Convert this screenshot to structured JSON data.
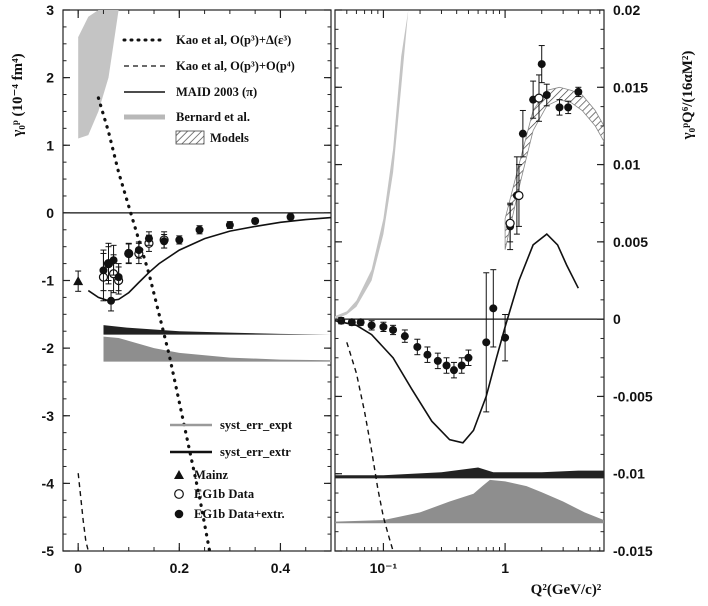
{
  "chart_data": [
    {
      "type": "line",
      "panel": "left",
      "ylabel": "γ₀ᵖ (10⁻⁴ fm⁴)",
      "xlabel": "",
      "xlim": [
        -0.03,
        0.5
      ],
      "ylim": [
        -5,
        3
      ],
      "x_ticks": [
        0,
        0.2,
        0.4
      ],
      "x_tick_labels": [
        "0",
        "0.2",
        "0.4"
      ],
      "y_ticks": [
        -5,
        -4,
        -3,
        -2,
        -1,
        0,
        1,
        2,
        3
      ],
      "y_tick_labels": [
        "-5",
        "-4",
        "-3",
        "-2",
        "-1",
        "0",
        "1",
        "2",
        "3"
      ],
      "legend_placement": "top-right and bottom-right",
      "legend": [
        {
          "label": "Kao et al, O(p³)+Δ(ε³)",
          "style": "dotted"
        },
        {
          "label": "Kao et al, O(p³)+O(p⁴)",
          "style": "dashed"
        },
        {
          "label": "MAID 2003 (π)",
          "style": "solid"
        },
        {
          "label": "Bernard et al.",
          "style": "gray-band"
        },
        {
          "label": "Models",
          "style": "hatched"
        },
        {
          "label": "syst_err_expt",
          "style": "gray-thick"
        },
        {
          "label": "syst_err_extr",
          "style": "black-thick"
        },
        {
          "label": "Mainz",
          "style": "triangle"
        },
        {
          "label": "EG1b Data",
          "style": "open-circle"
        },
        {
          "label": "EG1b Data+extr.",
          "style": "filled-circle"
        }
      ],
      "series": [
        {
          "name": "Kao et al, O(p³)+Δ(ε³)",
          "style": "dotted",
          "x": [
            0.04,
            0.06,
            0.08,
            0.1,
            0.12,
            0.14,
            0.16,
            0.18,
            0.2,
            0.22,
            0.24,
            0.26
          ],
          "y": [
            1.7,
            1.2,
            0.6,
            0.1,
            -0.4,
            -0.9,
            -1.5,
            -2.1,
            -2.8,
            -3.5,
            -4.2,
            -5.0
          ]
        },
        {
          "name": "Kao et al, O(p³)+O(p⁴)",
          "style": "dashed",
          "x": [
            0.0,
            0.005,
            0.01,
            0.015,
            0.02
          ],
          "y": [
            -3.85,
            -4.2,
            -4.55,
            -4.85,
            -5.0
          ]
        },
        {
          "name": "MAID 2003 (π)",
          "style": "solid",
          "x": [
            0.02,
            0.04,
            0.06,
            0.08,
            0.1,
            0.12,
            0.14,
            0.16,
            0.2,
            0.25,
            0.3,
            0.35,
            0.4,
            0.45,
            0.5
          ],
          "y": [
            -1.15,
            -1.25,
            -1.3,
            -1.28,
            -1.18,
            -1.03,
            -0.88,
            -0.75,
            -0.55,
            -0.38,
            -0.27,
            -0.2,
            -0.14,
            -0.1,
            -0.07
          ]
        },
        {
          "name": "Mainz",
          "style": "triangle",
          "x": [
            0.0
          ],
          "y": [
            -1.01
          ],
          "err": [
            0.15
          ]
        },
        {
          "name": "EG1b Data",
          "style": "open-circle",
          "x": [
            0.05,
            0.06,
            0.07,
            0.08,
            0.1,
            0.12,
            0.14,
            0.17
          ],
          "y": [
            -0.95,
            -0.75,
            -0.9,
            -1.0,
            -0.6,
            -0.6,
            -0.45,
            -0.4
          ],
          "err": [
            0.35,
            0.3,
            0.28,
            0.2,
            0.15,
            0.15,
            0.12,
            0.12
          ]
        },
        {
          "name": "EG1b Data+extr.",
          "style": "filled-circle",
          "x": [
            0.05,
            0.06,
            0.065,
            0.07,
            0.08,
            0.1,
            0.12,
            0.14,
            0.17,
            0.2,
            0.24,
            0.3,
            0.35,
            0.42
          ],
          "y": [
            -0.85,
            -0.75,
            -1.3,
            -0.7,
            -0.95,
            -0.6,
            -0.55,
            -0.38,
            -0.42,
            -0.4,
            -0.25,
            -0.18,
            -0.12,
            -0.06
          ],
          "err": [
            0.3,
            0.25,
            0.15,
            0.22,
            0.2,
            0.14,
            0.12,
            0.1,
            0.1,
            0.06,
            0.06,
            0.05,
            0.04,
            0.04
          ]
        }
      ],
      "bands": [
        {
          "name": "Bernard et al.",
          "x": [
            0.0,
            0.02,
            0.04,
            0.06,
            0.07,
            0.08
          ],
          "y_low": [
            1.1,
            1.15,
            1.5,
            2.0,
            2.5,
            3.0
          ],
          "y_high": [
            2.6,
            2.9,
            3.0,
            3.0,
            3.0,
            3.0
          ]
        },
        {
          "name": "syst_err_expt",
          "x": [
            0.05,
            0.08,
            0.15,
            0.2,
            0.3,
            0.4,
            0.5
          ],
          "y_top": [
            -1.83,
            -1.85,
            -2.0,
            -2.07,
            -2.14,
            -2.17,
            -2.18
          ],
          "y_base": -2.2
        },
        {
          "name": "syst_err_extr",
          "x": [
            0.05,
            0.1,
            0.2,
            0.3,
            0.4,
            0.5
          ],
          "y_top": [
            -1.66,
            -1.7,
            -1.75,
            -1.77,
            -1.79,
            -1.8
          ],
          "y_base": -1.8
        }
      ]
    },
    {
      "type": "line",
      "panel": "right",
      "ylabel": "γ₀ᵖQ⁶/(16αM²)",
      "xlabel": "Q²(GeV/c)²",
      "x_scale": "log",
      "xlim": [
        0.04,
        6.5
      ],
      "ylim": [
        -0.015,
        0.02
      ],
      "x_ticks": [
        0.1,
        1
      ],
      "x_tick_labels": [
        "10⁻¹",
        "1"
      ],
      "y_ticks": [
        -0.015,
        -0.01,
        -0.005,
        0,
        0.005,
        0.01,
        0.015,
        0.02
      ],
      "y_tick_labels": [
        "-0.015",
        "-0.01",
        "-0.005",
        "0",
        "0.005",
        "0.01",
        "0.015",
        "0.02"
      ],
      "series": [
        {
          "name": "Kao et al, O(p³)+O(p⁴)",
          "style": "dashed",
          "x": [
            0.05,
            0.06,
            0.07,
            0.08,
            0.09,
            0.1,
            0.11,
            0.12
          ],
          "y": [
            -0.0015,
            -0.0035,
            -0.006,
            -0.0085,
            -0.011,
            -0.0128,
            -0.014,
            -0.015
          ]
        },
        {
          "name": "MAID 2003 (π)",
          "style": "solid",
          "x": [
            0.04,
            0.06,
            0.08,
            0.12,
            0.17,
            0.25,
            0.35,
            0.45,
            0.55,
            0.7,
            0.85,
            1.0,
            1.3,
            1.7,
            2.2,
            2.7,
            3.2,
            4.0
          ],
          "y": [
            -0.0001,
            -0.0004,
            -0.001,
            -0.0025,
            -0.0045,
            -0.0066,
            -0.0078,
            -0.008,
            -0.0072,
            -0.005,
            -0.0025,
            -0.0005,
            0.0025,
            0.0048,
            0.0055,
            0.0048,
            0.0035,
            0.002
          ]
        },
        {
          "name": "EG1b Data+extr.",
          "style": "filled-circle",
          "x": [
            0.045,
            0.055,
            0.065,
            0.08,
            0.1,
            0.12,
            0.15,
            0.19,
            0.23,
            0.28,
            0.33,
            0.38,
            0.44,
            0.5,
            0.7,
            0.8,
            1.0,
            1.1,
            1.25,
            1.4,
            1.7,
            2.0,
            2.2,
            2.8,
            3.3,
            4.0
          ],
          "y": [
            -0.0001,
            -0.0002,
            -0.0002,
            -0.0004,
            -0.0005,
            -0.0007,
            -0.0011,
            -0.0018,
            -0.0023,
            -0.0027,
            -0.003,
            -0.0033,
            -0.003,
            -0.0025,
            -0.0015,
            0.0007,
            -0.0012,
            0.006,
            0.008,
            0.012,
            0.0142,
            0.0165,
            0.0145,
            0.0137,
            0.0137,
            0.0147
          ],
          "err": [
            0.0002,
            0.0002,
            0.0002,
            0.0003,
            0.0003,
            0.0003,
            0.0004,
            0.0005,
            0.0005,
            0.0005,
            0.0005,
            0.0005,
            0.0005,
            0.0005,
            0.0045,
            0.0025,
            0.0015,
            0.0015,
            0.0025,
            0.0015,
            0.0012,
            0.0012,
            0.0007,
            0.0005,
            0.0004,
            0.0003
          ]
        },
        {
          "name": "EG1b Data",
          "style": "open-circle",
          "x": [
            1.1,
            1.3,
            1.9
          ],
          "y": [
            0.0062,
            0.008,
            0.0143
          ],
          "err": [
            0.0012,
            0.002,
            0.0015
          ]
        }
      ],
      "bands": [
        {
          "name": "Bernard et al.",
          "x": [
            0.04,
            0.05,
            0.06,
            0.08,
            0.1,
            0.12,
            0.14,
            0.16
          ],
          "y_low": [
            0.0,
            0.0003,
            0.0008,
            0.0025,
            0.0055,
            0.0095,
            0.015,
            0.02
          ],
          "y_high": [
            0.0002,
            0.0005,
            0.0012,
            0.0032,
            0.0065,
            0.011,
            0.017,
            0.02
          ]
        },
        {
          "name": "Models",
          "x": [
            1.0,
            1.3,
            1.7,
            2.2,
            2.8,
            3.5,
            4.3,
            5.5,
            6.5
          ],
          "y_low": [
            0.0045,
            0.0085,
            0.0122,
            0.0138,
            0.0142,
            0.014,
            0.0135,
            0.0125,
            0.0115
          ],
          "y_high": [
            0.0065,
            0.01,
            0.0135,
            0.0148,
            0.015,
            0.0148,
            0.0145,
            0.0135,
            0.0125
          ]
        },
        {
          "name": "syst_err_extr",
          "x": [
            0.04,
            0.1,
            0.3,
            0.6,
            0.8,
            1.0,
            2.0,
            4.0,
            6.5
          ],
          "y_top": [
            -0.0101,
            -0.0101,
            -0.0099,
            -0.0096,
            -0.0099,
            -0.0099,
            -0.0099,
            -0.0098,
            -0.0098
          ],
          "y_base": -0.0103
        },
        {
          "name": "syst_err_expt",
          "x": [
            0.04,
            0.1,
            0.2,
            0.35,
            0.55,
            0.65,
            0.75,
            1.0,
            1.5,
            2.0,
            3.0,
            4.5,
            6.5
          ],
          "y_top": [
            -0.0131,
            -0.013,
            -0.0125,
            -0.0118,
            -0.0113,
            -0.0108,
            -0.0104,
            -0.0105,
            -0.0108,
            -0.0112,
            -0.0118,
            -0.0125,
            -0.013
          ],
          "y_base": -0.0132
        }
      ]
    }
  ]
}
